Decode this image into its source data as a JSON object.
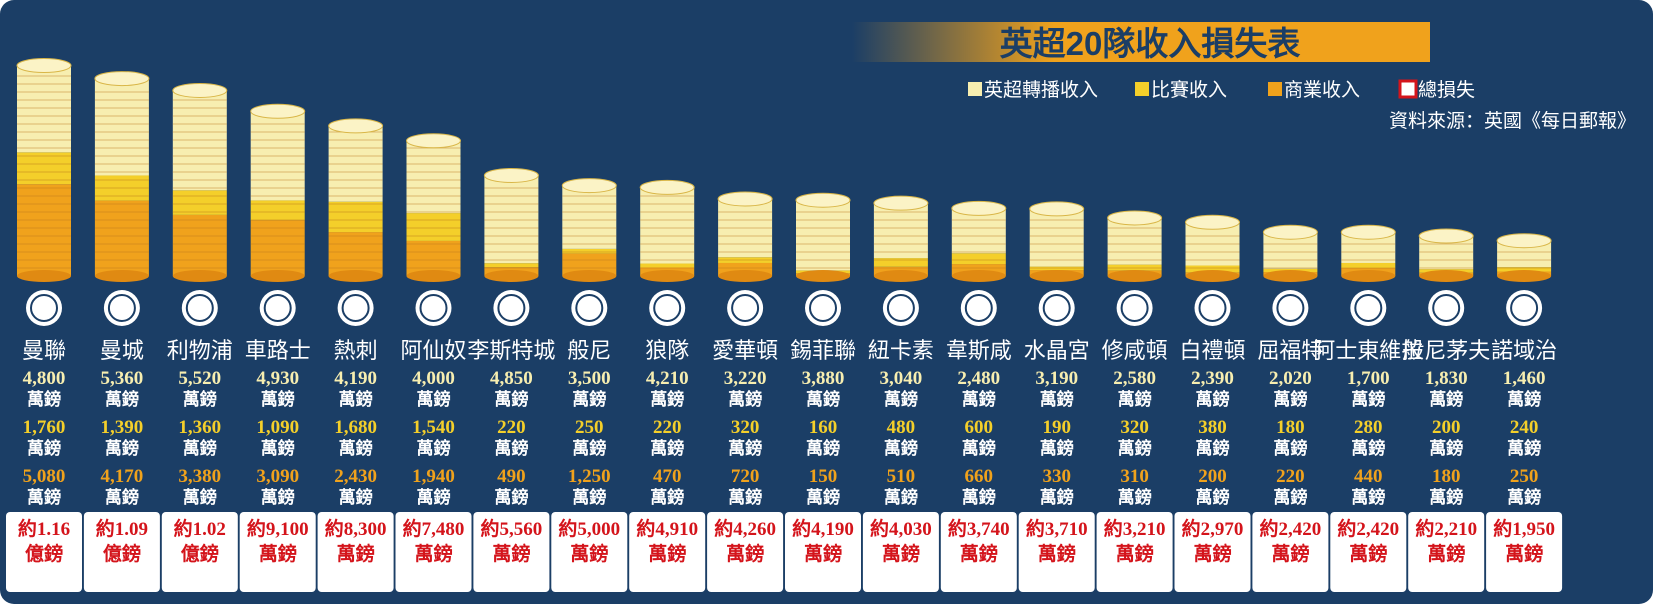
{
  "colors": {
    "background": "#1b3e66",
    "broadcast": "#f7eeb0",
    "matchday": "#f4cf2a",
    "commercial": "#f0a21c",
    "loss": "#d4141b",
    "title_bg": "#f0a21c"
  },
  "header": {
    "title": "英超20隊收入損失表",
    "legend": [
      {
        "key": "broadcast",
        "label": "英超轉播收入"
      },
      {
        "key": "matchday",
        "label": "比賽收入"
      },
      {
        "key": "commercial",
        "label": "商業收入"
      },
      {
        "key": "loss",
        "label": "總損失"
      }
    ],
    "source": "資料來源：英國《每日郵報》"
  },
  "chart_data": {
    "type": "bar",
    "title": "英超20隊收入損失表",
    "categories": [
      "曼聯",
      "曼城",
      "利物浦",
      "車路士",
      "熱刺",
      "阿仙奴",
      "李斯特城",
      "般尼",
      "狼隊",
      "愛華頓",
      "錫菲聯",
      "紐卡素",
      "韋斯咸",
      "水晶宮",
      "修咸頓",
      "白禮頓",
      "屈福特",
      "阿士東維拉",
      "般尼茅夫",
      "諾域治"
    ],
    "unit": "萬鎊",
    "series": [
      {
        "name": "英超轉播收入",
        "key": "broadcast",
        "values": [
          4800,
          5360,
          5520,
          4930,
          4190,
          4000,
          4850,
          3500,
          4210,
          3220,
          3880,
          3040,
          2480,
          3190,
          2580,
          2390,
          2020,
          1700,
          1830,
          1460
        ],
        "labels": [
          "4,800",
          "5,360",
          "5,520",
          "4,930",
          "4,190",
          "4,000",
          "4,850",
          "3,500",
          "4,210",
          "3,220",
          "3,880",
          "3,040",
          "2,480",
          "3,190",
          "2,580",
          "2,390",
          "2,020",
          "1,700",
          "1,830",
          "1,460"
        ]
      },
      {
        "name": "比賽收入",
        "key": "matchday",
        "values": [
          1760,
          1390,
          1360,
          1090,
          1680,
          1540,
          220,
          250,
          220,
          320,
          160,
          480,
          600,
          190,
          320,
          380,
          180,
          280,
          200,
          240
        ],
        "labels": [
          "1,760",
          "1,390",
          "1,360",
          "1,090",
          "1,680",
          "1,540",
          "220",
          "250",
          "220",
          "320",
          "160",
          "480",
          "600",
          "190",
          "320",
          "380",
          "180",
          "280",
          "200",
          "240"
        ]
      },
      {
        "name": "商業收入",
        "key": "commercial",
        "values": [
          5080,
          4170,
          3380,
          3090,
          2430,
          1940,
          490,
          1250,
          470,
          720,
          150,
          510,
          660,
          330,
          310,
          200,
          220,
          440,
          180,
          250
        ],
        "labels": [
          "5,080",
          "4,170",
          "3,380",
          "3,090",
          "2,430",
          "1,940",
          "490",
          "1,250",
          "470",
          "720",
          "150",
          "510",
          "660",
          "330",
          "310",
          "200",
          "220",
          "440",
          "180",
          "250"
        ]
      },
      {
        "name": "總損失",
        "key": "loss",
        "values": [
          11600,
          10900,
          10200,
          9100,
          8300,
          7480,
          5560,
          5000,
          4910,
          4260,
          4190,
          4030,
          3740,
          3710,
          3210,
          2970,
          2420,
          2420,
          2210,
          1950
        ],
        "labels": [
          "約1.16",
          "約1.09",
          "約1.02",
          "約9,100",
          "約8,300",
          "約7,480",
          "約5,560",
          "約5,000",
          "約4,910",
          "約4,260",
          "約4,190",
          "約4,030",
          "約3,740",
          "約3,710",
          "約3,210",
          "約2,970",
          "約2,420",
          "約2,420",
          "約2,210",
          "約1,950"
        ],
        "units": [
          "億鎊",
          "億鎊",
          "億鎊",
          "萬鎊",
          "萬鎊",
          "萬鎊",
          "萬鎊",
          "萬鎊",
          "萬鎊",
          "萬鎊",
          "萬鎊",
          "萬鎊",
          "萬鎊",
          "萬鎊",
          "萬鎊",
          "萬鎊",
          "萬鎊",
          "萬鎊",
          "萬鎊",
          "萬鎊"
        ]
      }
    ],
    "legend_position": "top-right",
    "grid": false
  }
}
